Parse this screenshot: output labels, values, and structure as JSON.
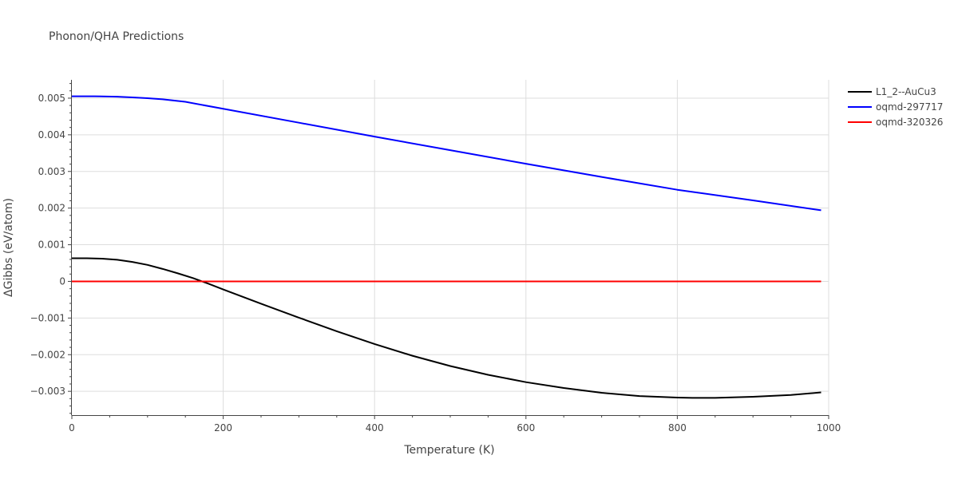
{
  "chart_data": {
    "type": "line",
    "title": "Phonon/QHA Predictions",
    "xlabel": "Temperature (K)",
    "ylabel": "ΔGibbs (eV/atom)",
    "xlim": [
      0,
      1000
    ],
    "ylim": [
      -0.00365,
      0.0055
    ],
    "x_ticks": [
      0,
      200,
      400,
      600,
      800,
      1000
    ],
    "x_tick_labels": [
      "0",
      "200",
      "400",
      "600",
      "800",
      "1000"
    ],
    "y_ticks": [
      -0.003,
      -0.002,
      -0.001,
      0,
      0.001,
      0.002,
      0.003,
      0.004,
      0.005
    ],
    "y_tick_labels": [
      "−0.003",
      "−0.002",
      "−0.001",
      "0",
      "0.001",
      "0.002",
      "0.003",
      "0.004",
      "0.005"
    ],
    "grid": true,
    "legend_position": "top-right",
    "series": [
      {
        "name": "L1_2--AuCu3",
        "color": "#000000",
        "x": [
          0,
          20,
          40,
          60,
          80,
          100,
          120,
          140,
          160,
          180,
          200,
          250,
          300,
          350,
          400,
          450,
          500,
          550,
          600,
          650,
          700,
          750,
          800,
          820,
          850,
          900,
          950,
          990
        ],
        "y": [
          0.00063,
          0.00063,
          0.00062,
          0.00059,
          0.00053,
          0.00045,
          0.00034,
          0.00022,
          9e-05,
          -6e-05,
          -0.00022,
          -0.00061,
          -0.00099,
          -0.00136,
          -0.00171,
          -0.00203,
          -0.00231,
          -0.00255,
          -0.00275,
          -0.00291,
          -0.00304,
          -0.00313,
          -0.00317,
          -0.00318,
          -0.00318,
          -0.00315,
          -0.0031,
          -0.00303
        ]
      },
      {
        "name": "oqmd-297717",
        "color": "#0000ff",
        "x": [
          0,
          30,
          60,
          80,
          100,
          120,
          150,
          200,
          300,
          400,
          500,
          600,
          700,
          800,
          900,
          990
        ],
        "y": [
          0.00505,
          0.00505,
          0.00504,
          0.00502,
          0.005,
          0.00497,
          0.0049,
          0.00471,
          0.00433,
          0.00395,
          0.00358,
          0.00321,
          0.00285,
          0.0025,
          0.00221,
          0.00194
        ]
      },
      {
        "name": "oqmd-320326",
        "color": "#ff0000",
        "x": [
          0,
          990
        ],
        "y": [
          0,
          0
        ]
      }
    ]
  }
}
